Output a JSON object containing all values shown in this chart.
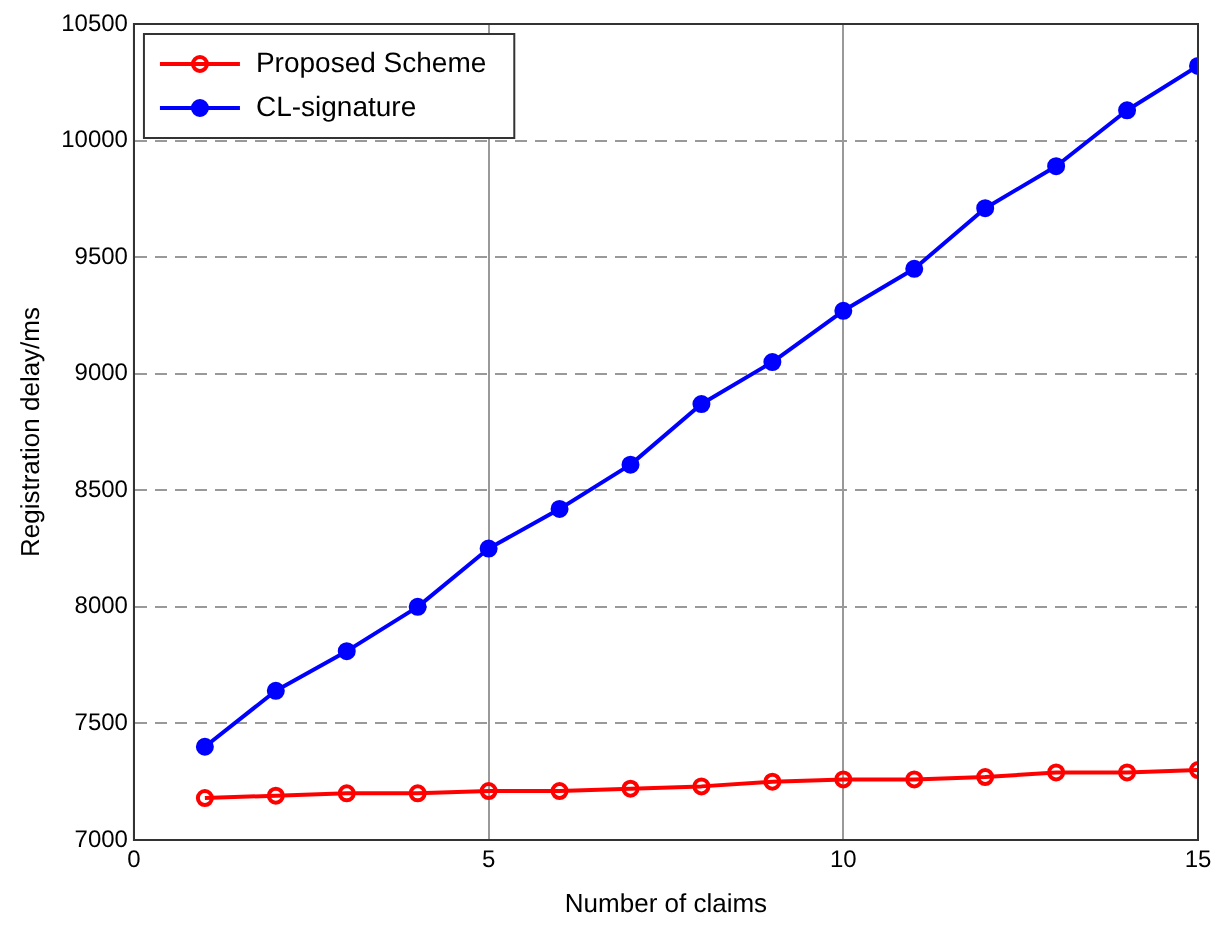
{
  "chart_data": {
    "type": "line",
    "xlabel": "Number of claims",
    "ylabel": "Registration delay/ms",
    "x": [
      1,
      2,
      3,
      4,
      5,
      6,
      7,
      8,
      9,
      10,
      11,
      12,
      13,
      14,
      15
    ],
    "series": [
      {
        "name": "Proposed Scheme",
        "color": "#ff0000",
        "marker": "circle",
        "values": [
          7180,
          7190,
          7200,
          7200,
          7210,
          7210,
          7220,
          7230,
          7250,
          7260,
          7260,
          7270,
          7290,
          7290,
          7300
        ]
      },
      {
        "name": "CL-signature",
        "color": "#0000ff",
        "marker": "filled_circle",
        "values": [
          7400,
          7640,
          7810,
          8000,
          8250,
          8420,
          8610,
          8870,
          9050,
          9270,
          9450,
          9710,
          9890,
          10130,
          10320
        ]
      }
    ],
    "xlim": [
      0,
      15
    ],
    "xticks": [
      0,
      5,
      10,
      15
    ],
    "ylim": [
      7000,
      10500
    ],
    "yticks": [
      7000,
      7500,
      8000,
      8500,
      9000,
      9500,
      10000,
      10500
    ],
    "grid": true,
    "legend": "top left",
    "line_style": "solid"
  }
}
